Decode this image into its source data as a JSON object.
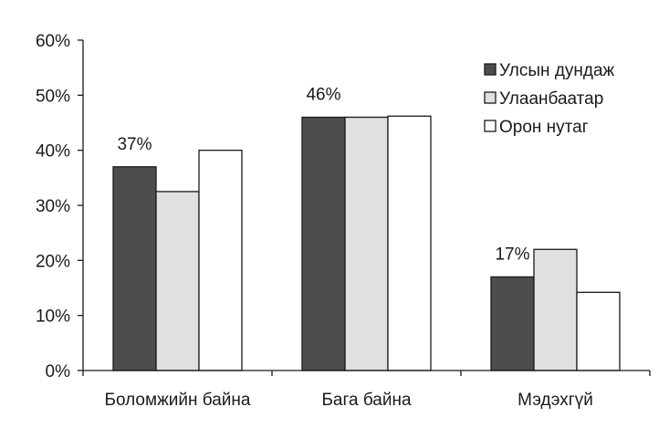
{
  "chart_data": {
    "type": "bar",
    "categories": [
      "Боломжийн байна",
      "Бага байна",
      "Мэдэхгүй"
    ],
    "series": [
      {
        "name": "Улсын дундаж",
        "values": [
          37,
          46,
          17
        ],
        "color": "#4d4d4d"
      },
      {
        "name": "Улаанбаатар",
        "values": [
          32.5,
          46,
          22
        ],
        "color": "#e0e0e0"
      },
      {
        "name": "Орон нутаг",
        "values": [
          40,
          46.2,
          14.2
        ],
        "color": "#ffffff"
      }
    ],
    "data_labels": [
      {
        "category_index": 0,
        "series_index": 0,
        "text": "37%"
      },
      {
        "category_index": 1,
        "series_index": 0,
        "text": "46%"
      },
      {
        "category_index": 2,
        "series_index": 0,
        "text": "17%"
      }
    ],
    "y_ticks": [
      "0%",
      "10%",
      "20%",
      "30%",
      "40%",
      "50%",
      "60%"
    ],
    "ylim": [
      0,
      60
    ],
    "title": "",
    "xlabel": "",
    "ylabel": "",
    "grid": false,
    "legend_position": "top-right"
  }
}
